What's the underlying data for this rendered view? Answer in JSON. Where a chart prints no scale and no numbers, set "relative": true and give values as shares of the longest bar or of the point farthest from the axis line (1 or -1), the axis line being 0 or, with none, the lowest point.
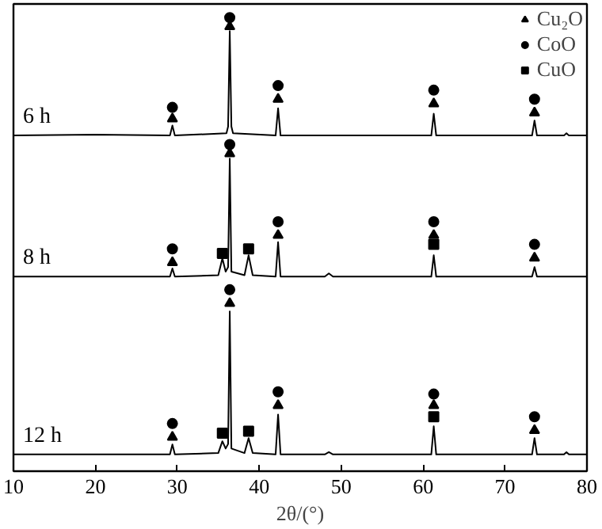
{
  "chart_data": {
    "type": "line",
    "relative": true,
    "xlabel": "2θ/(°)",
    "xlim": [
      10,
      80
    ],
    "xticks": [
      10,
      20,
      30,
      40,
      50,
      60,
      70,
      80
    ],
    "tick_labels": "x",
    "grid": false,
    "legend": "top right",
    "annotations": [
      "6 h",
      "8 h",
      "12 h"
    ],
    "series": [
      {
        "color": "#000000",
        "x": [
          10,
          20,
          29.1,
          29.4,
          29.7,
          36.0,
          36.2,
          36.4,
          36.6,
          36.8,
          42.0,
          42.3,
          42.6,
          61.0,
          61.3,
          61.6,
          73.3,
          73.6,
          73.9,
          77.2,
          77.5,
          77.8,
          80
        ],
        "values": [
          0.74,
          0.742,
          0.74,
          0.762,
          0.74,
          0.745,
          0.76,
          0.97,
          0.76,
          0.745,
          0.74,
          0.8,
          0.74,
          0.74,
          0.788,
          0.74,
          0.74,
          0.773,
          0.74,
          0.74,
          0.745,
          0.74,
          0.74
        ]
      },
      {
        "color": "#000000",
        "x": [
          10,
          29.1,
          29.4,
          29.7,
          35.0,
          35.5,
          35.9,
          36.2,
          36.4,
          36.6,
          38.2,
          38.7,
          39.2,
          42.0,
          42.3,
          42.6,
          48.0,
          48.5,
          49.0,
          61.0,
          61.3,
          61.6,
          73.3,
          73.6,
          73.9,
          80
        ],
        "values": [
          0.429,
          0.429,
          0.447,
          0.429,
          0.432,
          0.469,
          0.44,
          0.45,
          0.689,
          0.44,
          0.432,
          0.476,
          0.432,
          0.429,
          0.505,
          0.429,
          0.429,
          0.436,
          0.429,
          0.429,
          0.476,
          0.429,
          0.429,
          0.45,
          0.429,
          0.429
        ]
      },
      {
        "color": "#000000",
        "x": [
          10,
          29.1,
          29.4,
          29.7,
          35.0,
          35.5,
          35.9,
          36.2,
          36.4,
          36.6,
          38.2,
          38.7,
          39.2,
          42.0,
          42.3,
          42.6,
          48.0,
          48.5,
          49.0,
          61.0,
          61.3,
          61.6,
          73.3,
          73.6,
          73.9,
          77.2,
          77.5,
          77.8,
          80
        ],
        "values": [
          0.037,
          0.037,
          0.059,
          0.037,
          0.04,
          0.066,
          0.05,
          0.06,
          0.352,
          0.05,
          0.04,
          0.073,
          0.04,
          0.037,
          0.125,
          0.037,
          0.037,
          0.042,
          0.037,
          0.037,
          0.099,
          0.037,
          0.037,
          0.073,
          0.037,
          0.037,
          0.042,
          0.037,
          0.037
        ]
      },
      {
        "type": "scatter",
        "name": "Cu₂O",
        "marker": "triangle",
        "color": "#000000",
        "x": [
          29.4,
          36.4,
          42.3,
          61.3,
          73.6,
          29.4,
          36.4,
          42.3,
          61.3,
          73.6,
          29.4,
          36.4,
          42.3,
          61.3,
          73.6
        ],
        "values": [
          0.777,
          0.98,
          0.82,
          0.81,
          0.79,
          0.46,
          0.7,
          0.52,
          0.52,
          0.47,
          0.075,
          0.37,
          0.145,
          0.145,
          0.09
        ]
      },
      {
        "type": "scatter",
        "name": "CoO",
        "marker": "circle",
        "color": "#000000",
        "x": [
          29.4,
          36.4,
          42.3,
          61.3,
          73.6,
          29.4,
          36.4,
          42.3,
          61.3,
          73.6,
          29.4,
          36.4,
          42.3,
          61.3,
          73.6
        ],
        "values": [
          0.802,
          1.0,
          0.85,
          0.84,
          0.82,
          0.49,
          0.72,
          0.55,
          0.55,
          0.5,
          0.105,
          0.4,
          0.175,
          0.17,
          0.12
        ]
      },
      {
        "type": "scatter",
        "name": "CuO",
        "marker": "square",
        "color": "#000000",
        "x": [
          35.5,
          38.7,
          61.3,
          35.5,
          38.7,
          61.3
        ],
        "values": [
          0.48,
          0.49,
          0.5,
          0.084,
          0.088,
          0.12
        ]
      }
    ]
  }
}
